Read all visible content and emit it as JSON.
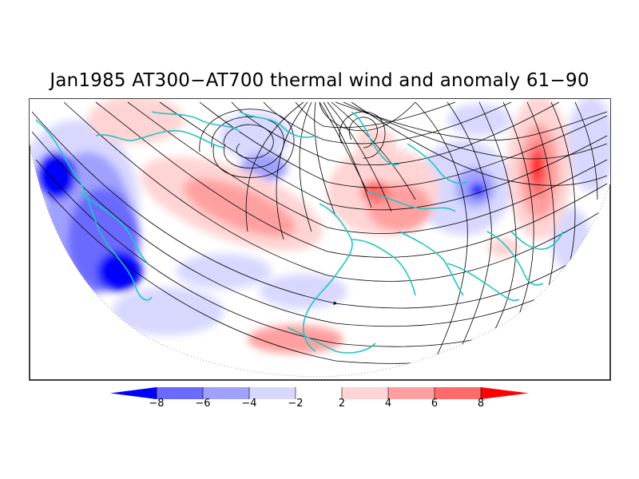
{
  "title": "Jan1985 AT300−AT700 thermal wind and anomaly 61−90",
  "colorbar": {
    "colors": [
      "#0000ff",
      "#6a6aff",
      "#a0a0ff",
      "#d8d8ff",
      "#ffffff",
      "#ffd4d4",
      "#ffa0a0",
      "#ff6a6a",
      "#ff0000"
    ],
    "ticks": [
      "−8",
      "−6",
      "−4",
      "−2",
      "2",
      "4",
      "6",
      "8"
    ]
  },
  "colors": {
    "streamline": "#000000",
    "coastline": "#22c4c4",
    "frame": "#000000"
  }
}
